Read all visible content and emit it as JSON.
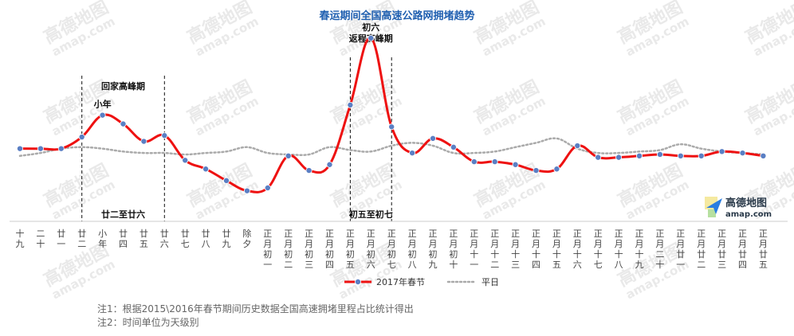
{
  "chart_data": {
    "type": "line",
    "title": "春运期间全国高速公路网拥堵趋势",
    "categories": [
      "十九",
      "二十",
      "廿一",
      "廿二",
      "小年",
      "廿四",
      "廿五",
      "廿六",
      "廿七",
      "廿八",
      "廿九",
      "除夕",
      "正月初一",
      "正月初二",
      "正月初三",
      "正月初四",
      "正月初五",
      "正月初六",
      "正月初七",
      "正月初八",
      "正月初九",
      "正月初十",
      "正月十一",
      "正月十二",
      "正月十三",
      "正月十四",
      "正月十五",
      "正月十六",
      "正月十七",
      "正月十八",
      "正月十九",
      "正月二十",
      "正月廿一",
      "正月廿二",
      "正月廿三",
      "正月廿四",
      "正月廿五"
    ],
    "tick_labels": [
      [
        "十",
        "九"
      ],
      [
        "二",
        "十"
      ],
      [
        "廿",
        "一"
      ],
      [
        "廿",
        "二"
      ],
      [
        "小",
        "年"
      ],
      [
        "廿",
        "四"
      ],
      [
        "廿",
        "五"
      ],
      [
        "廿",
        "六"
      ],
      [
        "廿",
        "七"
      ],
      [
        "廿",
        "八"
      ],
      [
        "廿",
        "九"
      ],
      [
        "除",
        "夕"
      ],
      [
        "正",
        "月",
        "初",
        "一"
      ],
      [
        "正",
        "月",
        "初",
        "二"
      ],
      [
        "正",
        "月",
        "初",
        "三"
      ],
      [
        "正",
        "月",
        "初",
        "四"
      ],
      [
        "正",
        "月",
        "初",
        "五"
      ],
      [
        "正",
        "月",
        "初",
        "六"
      ],
      [
        "正",
        "月",
        "初",
        "七"
      ],
      [
        "正",
        "月",
        "初",
        "八"
      ],
      [
        "正",
        "月",
        "初",
        "九"
      ],
      [
        "正",
        "月",
        "初",
        "十"
      ],
      [
        "正",
        "月",
        "十",
        "一"
      ],
      [
        "正",
        "月",
        "十",
        "二"
      ],
      [
        "正",
        "月",
        "十",
        "三"
      ],
      [
        "正",
        "月",
        "十",
        "四"
      ],
      [
        "正",
        "月",
        "十",
        "五"
      ],
      [
        "正",
        "月",
        "十",
        "六"
      ],
      [
        "正",
        "月",
        "十",
        "七"
      ],
      [
        "正",
        "月",
        "十",
        "八"
      ],
      [
        "正",
        "月",
        "十",
        "九"
      ],
      [
        "正",
        "月",
        "二",
        "十"
      ],
      [
        "正",
        "月",
        "廿",
        "一"
      ],
      [
        "正",
        "月",
        "廿",
        "二"
      ],
      [
        "正",
        "月",
        "廿",
        "三"
      ],
      [
        "正",
        "月",
        "廿",
        "四"
      ],
      [
        "正",
        "月",
        "廿",
        "五"
      ]
    ],
    "series": [
      {
        "name": "2017年春节",
        "color": "#ee1111",
        "style": "solid-with-markers",
        "values": [
          50,
          50,
          50,
          58,
          73,
          67,
          55,
          59,
          42,
          36,
          28,
          21,
          23,
          45,
          35,
          39,
          80,
          126,
          65,
          47,
          57,
          51,
          41,
          41,
          39,
          35,
          36,
          52,
          44,
          44,
          45,
          46,
          45,
          45,
          48,
          47,
          45
        ]
      },
      {
        "name": "平日",
        "color": "#aaaaaa",
        "style": "dotted",
        "values": [
          45,
          47,
          50,
          51,
          50,
          48,
          47,
          47,
          46,
          47,
          48,
          51,
          47,
          46,
          46,
          51,
          49,
          48,
          52,
          54,
          52,
          47,
          47,
          48,
          51,
          54,
          57,
          50,
          47,
          47,
          48,
          49,
          53,
          50,
          48,
          47,
          46
        ]
      }
    ],
    "ylim": [
      0,
      150
    ],
    "grid": false,
    "legend_position": "bottom",
    "periods": [
      {
        "label": "回家高峰期",
        "range_label": "廿二至廿六",
        "start": "廿二",
        "end": "廿六"
      },
      {
        "label": "返程高峰期",
        "range_label": "初五至初七",
        "start": "正月初五",
        "end": "正月初七"
      }
    ],
    "point_labels": [
      {
        "category": "小年",
        "text": "小年"
      },
      {
        "category": "正月初六",
        "text": "初六"
      }
    ]
  },
  "notes": [
    "注1：根据2015\\2016年春节期间历史数据全国高速拥堵里程占比统计得出",
    "注2：时间单位为天级别"
  ],
  "watermark": {
    "brand": "高德地图",
    "domain": "amap.com"
  },
  "logo": {
    "brand": "高德地图",
    "domain": "amap.com",
    "color": "#2a7de1"
  }
}
